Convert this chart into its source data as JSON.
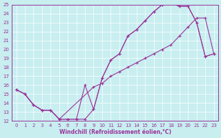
{
  "xlabel": "Windchill (Refroidissement éolien,°C)",
  "bg_color": "#c8eef0",
  "line_color": "#993399",
  "xlim": [
    -0.5,
    23.5
  ],
  "ylim": [
    12,
    25
  ],
  "xticks": [
    0,
    1,
    2,
    3,
    4,
    5,
    6,
    7,
    8,
    9,
    10,
    11,
    12,
    13,
    14,
    15,
    16,
    17,
    18,
    19,
    20,
    21,
    22,
    23
  ],
  "yticks": [
    12,
    13,
    14,
    15,
    16,
    17,
    18,
    19,
    20,
    21,
    22,
    23,
    24,
    25
  ],
  "line1_x": [
    0,
    1,
    2,
    3,
    4,
    5,
    6,
    7,
    8,
    9,
    10,
    11,
    12,
    13,
    14,
    15,
    16,
    17,
    18,
    19,
    20,
    21,
    22,
    23
  ],
  "line1_y": [
    15.5,
    15.0,
    13.8,
    13.2,
    13.2,
    12.2,
    12.2,
    12.2,
    12.2,
    13.3,
    16.8,
    18.8,
    19.5,
    21.5,
    22.2,
    23.2,
    24.2,
    25.0,
    25.2,
    24.8,
    24.8,
    23.0,
    19.2,
    19.5
  ],
  "line2_x": [
    0,
    1,
    2,
    3,
    4,
    5,
    9,
    10,
    11,
    12,
    13,
    14,
    15,
    16,
    17,
    18,
    19,
    20,
    21,
    22,
    23
  ],
  "line2_y": [
    15.5,
    15.0,
    13.8,
    13.2,
    13.2,
    12.2,
    15.8,
    16.2,
    17.0,
    17.5,
    18.0,
    18.5,
    19.0,
    19.5,
    20.0,
    20.5,
    21.5,
    22.5,
    23.5,
    23.5,
    19.5
  ],
  "line3_x": [
    0,
    1,
    2,
    3,
    4,
    5,
    6,
    7,
    8,
    9,
    10,
    11,
    12,
    13,
    14,
    15,
    16,
    17,
    18,
    19,
    20,
    21,
    22,
    23
  ],
  "line3_y": [
    15.5,
    15.0,
    13.8,
    13.2,
    13.2,
    12.2,
    12.2,
    12.2,
    16.0,
    13.3,
    16.8,
    18.8,
    19.5,
    21.5,
    22.2,
    23.2,
    24.2,
    25.0,
    25.2,
    24.8,
    24.8,
    23.0,
    19.2,
    19.5
  ]
}
